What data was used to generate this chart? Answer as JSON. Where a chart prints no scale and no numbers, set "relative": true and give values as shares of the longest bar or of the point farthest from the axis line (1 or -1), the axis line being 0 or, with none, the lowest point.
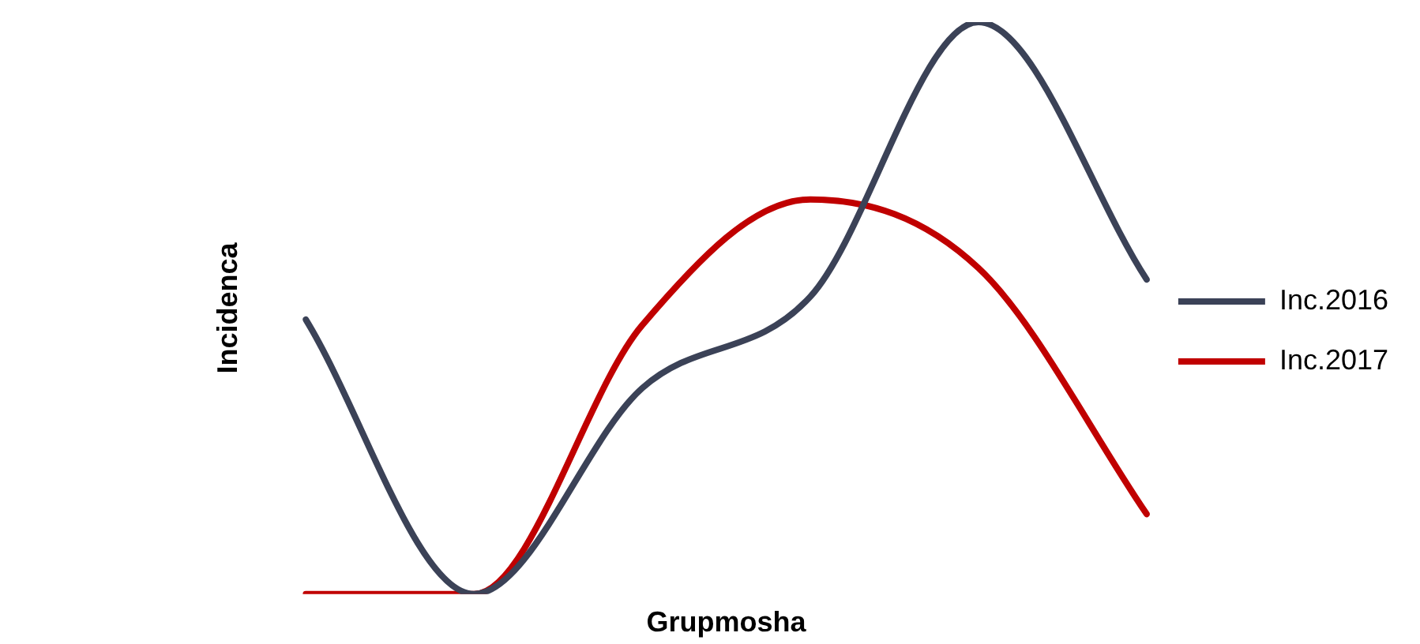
{
  "chart_data": {
    "type": "line",
    "relative": true,
    "xlabel": "Grupmosha",
    "ylabel": "Incidenca",
    "legend": "right",
    "marker": "none",
    "line_style": "solid",
    "grid": false,
    "categories": [
      null,
      null,
      null,
      null,
      null,
      null
    ],
    "series": [
      {
        "name": "Inc.2016",
        "color": "#3b4257",
        "values": [
          0.48,
          0,
          0.36,
          0.52,
          1,
          0.55
        ]
      },
      {
        "name": "Inc.2017",
        "color": "#c00000",
        "values": [
          0,
          0,
          0.47,
          0.69,
          0.57,
          0.14
        ]
      }
    ]
  }
}
